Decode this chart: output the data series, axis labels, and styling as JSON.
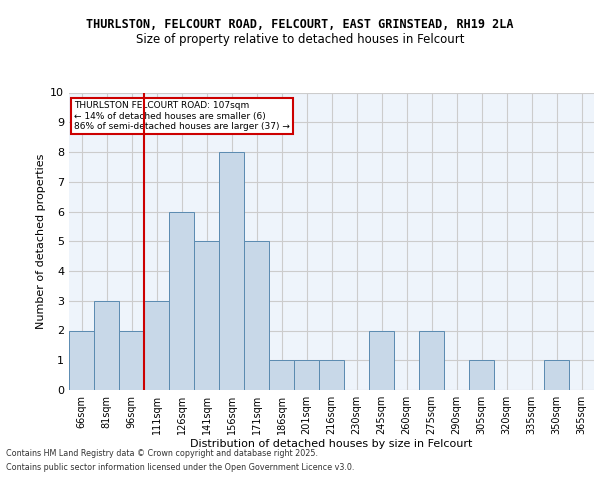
{
  "title1": "THURLSTON, FELCOURT ROAD, FELCOURT, EAST GRINSTEAD, RH19 2LA",
  "title2": "Size of property relative to detached houses in Felcourt",
  "xlabel": "Distribution of detached houses by size in Felcourt",
  "ylabel": "Number of detached properties",
  "bins": [
    "66sqm",
    "81sqm",
    "96sqm",
    "111sqm",
    "126sqm",
    "141sqm",
    "156sqm",
    "171sqm",
    "186sqm",
    "201sqm",
    "216sqm",
    "230sqm",
    "245sqm",
    "260sqm",
    "275sqm",
    "290sqm",
    "305sqm",
    "320sqm",
    "335sqm",
    "350sqm",
    "365sqm"
  ],
  "counts": [
    2,
    3,
    2,
    3,
    6,
    5,
    8,
    5,
    1,
    1,
    1,
    0,
    2,
    0,
    2,
    0,
    1,
    0,
    0,
    1,
    0
  ],
  "bar_color": "#c8d8e8",
  "bar_edge_color": "#5a8ab0",
  "grid_color": "#cccccc",
  "bg_color": "#eef4fb",
  "annotation_text": "THURLSTON FELCOURT ROAD: 107sqm\n← 14% of detached houses are smaller (6)\n86% of semi-detached houses are larger (37) →",
  "annotation_box_color": "#ffffff",
  "annotation_box_edge": "#cc0000",
  "footer1": "Contains HM Land Registry data © Crown copyright and database right 2025.",
  "footer2": "Contains public sector information licensed under the Open Government Licence v3.0.",
  "ylim": [
    0,
    10
  ],
  "red_line_color": "#cc0000",
  "red_line_x": 2.5
}
